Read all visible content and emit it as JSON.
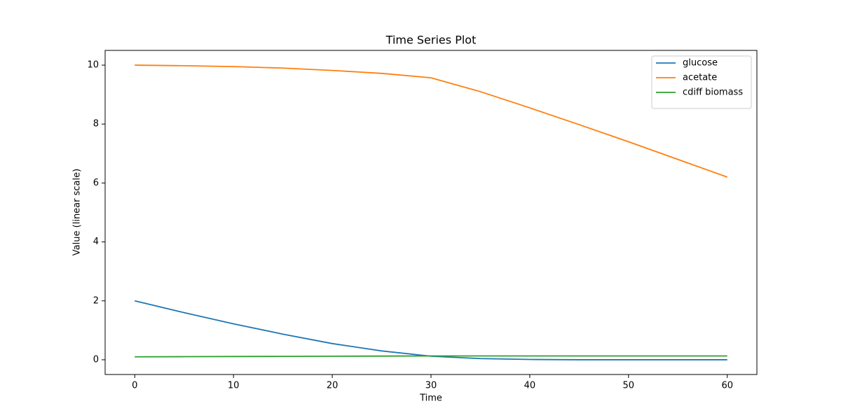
{
  "chart_data": {
    "type": "line",
    "title": "Time Series Plot",
    "x_label": "Time",
    "y_label": "Value (linear scale)",
    "x": [
      0,
      5,
      10,
      15,
      20,
      25,
      30,
      35,
      40,
      45,
      50,
      55,
      60
    ],
    "series": [
      {
        "name": "glucose",
        "color": "#1f77b4",
        "values": [
          2.0,
          1.6,
          1.22,
          0.87,
          0.55,
          0.3,
          0.12,
          0.04,
          0.01,
          0.0,
          0.0,
          0.0,
          0.0
        ]
      },
      {
        "name": "acetate",
        "color": "#ff7f0e",
        "values": [
          10.0,
          9.98,
          9.95,
          9.9,
          9.82,
          9.72,
          9.57,
          9.1,
          8.55,
          7.98,
          7.4,
          6.8,
          6.2
        ]
      },
      {
        "name": "cdiff biomass",
        "color": "#2ca02c",
        "values": [
          0.1,
          0.105,
          0.11,
          0.115,
          0.12,
          0.125,
          0.13,
          0.13,
          0.13,
          0.13,
          0.13,
          0.13,
          0.13
        ]
      }
    ],
    "xlim": [
      -3,
      63
    ],
    "ylim": [
      -0.5,
      10.5
    ],
    "xticks": [
      0,
      10,
      20,
      30,
      40,
      50,
      60
    ],
    "yticks": [
      0,
      2,
      4,
      6,
      8,
      10
    ],
    "legend": "upper right"
  }
}
